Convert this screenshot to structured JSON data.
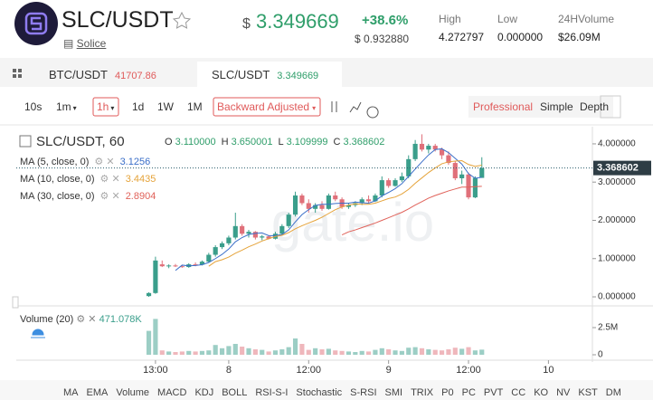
{
  "header": {
    "pair": "SLC/USDT",
    "source": "Solice",
    "currency": "$",
    "price": "3.349669",
    "change": "+38.6%",
    "change_usd": "$ 0.932880",
    "stats": [
      {
        "label": "High",
        "value": "4.272797"
      },
      {
        "label": "Low",
        "value": "0.000000"
      },
      {
        "label": "24HVolume",
        "value": "$26.09M"
      }
    ]
  },
  "tabs": [
    {
      "pair": "BTC/USDT",
      "price": "41707.86"
    },
    {
      "pair": "SLC/USDT",
      "price": "3.349669"
    }
  ],
  "toolbar": {
    "intervals": [
      "10s",
      "1m",
      "1h",
      "1d",
      "1W",
      "1M"
    ],
    "adjust": "Backward Adjusted",
    "views": [
      "Professional",
      "Simple",
      "Depth"
    ]
  },
  "chart_data": {
    "type": "candlestick",
    "title": "SLC/USDT, 60",
    "watermark": "gate.io",
    "ohlc_legend": [
      {
        "label": "O",
        "value": "3.110000"
      },
      {
        "label": "H",
        "value": "3.650001"
      },
      {
        "label": "L",
        "value": "3.109999"
      },
      {
        "label": "C",
        "value": "3.368602"
      }
    ],
    "up_color": "#3a9e8b",
    "down_color": "#e0707a",
    "x": [
      0,
      1,
      2,
      3,
      4,
      5,
      6,
      7,
      8,
      9,
      10,
      11,
      12,
      13,
      14,
      15,
      16,
      17,
      18,
      19,
      20,
      21,
      22,
      23,
      24,
      25,
      26,
      27,
      28,
      29,
      30,
      31,
      32,
      33,
      34,
      35,
      36,
      37,
      38,
      39,
      40,
      41,
      42,
      43,
      44,
      45,
      46,
      47,
      48,
      49,
      50
    ],
    "open": [
      0.02,
      0.1,
      0.85,
      0.8,
      0.82,
      0.8,
      0.78,
      0.85,
      0.84,
      0.92,
      1.1,
      1.3,
      1.4,
      1.55,
      1.85,
      1.65,
      1.7,
      1.55,
      1.58,
      1.52,
      1.65,
      1.85,
      2.15,
      2.65,
      2.45,
      2.3,
      2.4,
      2.3,
      2.65,
      2.55,
      2.35,
      2.4,
      2.45,
      2.55,
      2.5,
      2.65,
      3.05,
      2.9,
      3.05,
      3.15,
      3.6,
      4.0,
      3.85,
      3.95,
      3.85,
      3.7,
      3.5,
      3.1,
      3.2,
      2.6,
      3.11
    ],
    "high": [
      0.12,
      1.05,
      0.95,
      0.85,
      0.86,
      0.84,
      0.88,
      0.9,
      0.95,
      1.15,
      1.35,
      1.45,
      1.6,
      2.2,
      1.9,
      1.75,
      1.72,
      1.62,
      1.6,
      1.7,
      1.9,
      2.2,
      2.75,
      2.7,
      2.55,
      2.45,
      2.5,
      2.7,
      2.75,
      2.6,
      2.45,
      2.5,
      2.6,
      2.65,
      2.7,
      3.15,
      3.1,
      3.1,
      3.25,
      3.7,
      4.1,
      4.25,
      4.0,
      4.0,
      3.9,
      3.8,
      3.55,
      3.3,
      3.25,
      3.15,
      3.650001
    ],
    "low": [
      0.0,
      0.08,
      0.78,
      0.75,
      0.78,
      0.76,
      0.76,
      0.8,
      0.82,
      0.9,
      1.05,
      1.25,
      1.35,
      1.5,
      1.6,
      1.55,
      1.5,
      1.48,
      1.5,
      1.5,
      1.6,
      1.8,
      2.1,
      2.4,
      2.2,
      2.2,
      2.25,
      2.28,
      2.5,
      2.3,
      2.3,
      2.35,
      2.4,
      2.45,
      2.48,
      2.6,
      2.85,
      2.88,
      3.0,
      3.1,
      3.55,
      3.8,
      3.75,
      3.8,
      3.6,
      3.45,
      3.05,
      2.95,
      2.55,
      2.58,
      3.109999
    ],
    "close": [
      0.1,
      0.95,
      0.8,
      0.82,
      0.8,
      0.78,
      0.85,
      0.84,
      0.92,
      1.1,
      1.3,
      1.4,
      1.55,
      1.85,
      1.65,
      1.7,
      1.55,
      1.58,
      1.52,
      1.65,
      1.85,
      2.15,
      2.65,
      2.45,
      2.3,
      2.4,
      2.3,
      2.65,
      2.55,
      2.35,
      2.4,
      2.45,
      2.55,
      2.5,
      2.65,
      3.05,
      2.9,
      3.05,
      3.15,
      3.6,
      4.0,
      3.85,
      3.95,
      3.85,
      3.7,
      3.5,
      3.1,
      3.2,
      2.6,
      3.11,
      3.368602
    ],
    "series": [
      {
        "name": "MA (5, close, 0)",
        "color": "#3b6fc9",
        "legend_value": "3.1256",
        "values": [
          null,
          null,
          null,
          null,
          0.69,
          0.83,
          0.81,
          0.82,
          0.84,
          0.9,
          1.0,
          1.11,
          1.25,
          1.44,
          1.55,
          1.63,
          1.66,
          1.67,
          1.6,
          1.6,
          1.63,
          1.75,
          1.96,
          2.15,
          2.28,
          2.39,
          2.42,
          2.42,
          2.44,
          2.45,
          2.45,
          2.48,
          2.46,
          2.45,
          2.51,
          2.64,
          2.73,
          2.83,
          2.96,
          3.15,
          3.34,
          3.53,
          3.71,
          3.85,
          3.87,
          3.77,
          3.62,
          3.47,
          3.22,
          3.1,
          3.1256
        ]
      },
      {
        "name": "MA (10, close, 0)",
        "color": "#e5a33a",
        "legend_value": "3.4435",
        "values": [
          null,
          null,
          null,
          null,
          null,
          null,
          null,
          null,
          null,
          0.8,
          0.92,
          0.97,
          1.04,
          1.14,
          1.22,
          1.31,
          1.38,
          1.46,
          1.52,
          1.58,
          1.61,
          1.68,
          1.78,
          1.86,
          1.93,
          2.0,
          2.08,
          2.18,
          2.28,
          2.35,
          2.4,
          2.43,
          2.42,
          2.42,
          2.45,
          2.51,
          2.57,
          2.61,
          2.69,
          2.81,
          2.97,
          3.11,
          3.25,
          3.37,
          3.48,
          3.53,
          3.55,
          3.56,
          3.46,
          3.41,
          3.4435
        ]
      },
      {
        "name": "MA (30, close, 0)",
        "color": "#e0625a",
        "legend_value": "2.8904",
        "values": [
          null,
          null,
          null,
          null,
          null,
          null,
          null,
          null,
          null,
          null,
          null,
          null,
          null,
          null,
          null,
          null,
          null,
          null,
          null,
          null,
          null,
          null,
          null,
          null,
          null,
          null,
          null,
          null,
          null,
          1.62,
          1.7,
          1.75,
          1.81,
          1.87,
          1.93,
          2.0,
          2.07,
          2.14,
          2.21,
          2.3,
          2.4,
          2.49,
          2.58,
          2.65,
          2.71,
          2.77,
          2.82,
          2.87,
          2.87,
          2.88,
          2.8904
        ]
      }
    ],
    "ylim": [
      -0.165,
      4.33
    ],
    "yticks": [
      {
        "value": 4,
        "label": "4.000000"
      },
      {
        "value": 3,
        "label": "3.000000"
      },
      {
        "value": 2,
        "label": "2.000000"
      },
      {
        "value": 1,
        "label": "1.000000"
      },
      {
        "value": 0,
        "label": "0.000000"
      }
    ],
    "xlim": [
      -19.9,
      66.6
    ],
    "xticks": [
      {
        "value": 1,
        "label": "13:00"
      },
      {
        "value": 12,
        "label": "8"
      },
      {
        "value": 24,
        "label": "12:00"
      },
      {
        "value": 36,
        "label": "9"
      },
      {
        "value": 48,
        "label": "12:00"
      },
      {
        "value": 60,
        "label": "10"
      }
    ],
    "volume": {
      "name": "Volume (20)",
      "legend_value": "471.078K",
      "values": [
        2200000,
        3300000,
        400000,
        300000,
        250000,
        300000,
        350000,
        300000,
        350000,
        400000,
        900000,
        600000,
        800000,
        1000000,
        750000,
        600000,
        500000,
        450000,
        300000,
        400000,
        500000,
        700000,
        1500000,
        1000000,
        450000,
        600000,
        500000,
        550000,
        400000,
        350000,
        300000,
        250000,
        350000,
        300000,
        450000,
        600000,
        500000,
        400000,
        350000,
        650000,
        700000,
        600000,
        500000,
        450000,
        400000,
        500000,
        650000,
        550000,
        700000,
        400000,
        471078
      ],
      "ylim": [
        -416000,
        4333000
      ],
      "yticks": [
        {
          "value": 2500000,
          "label": "2.5M"
        },
        0
      ]
    }
  },
  "indicators": [
    "MA",
    "EMA",
    "Volume",
    "MACD",
    "KDJ",
    "BOLL",
    "RSI-S-I",
    "Stochastic",
    "S-RSI",
    "SMI",
    "TRIX",
    "P0",
    "PC",
    "PVT",
    "CC",
    "KO",
    "NV",
    "KST",
    "DM"
  ]
}
